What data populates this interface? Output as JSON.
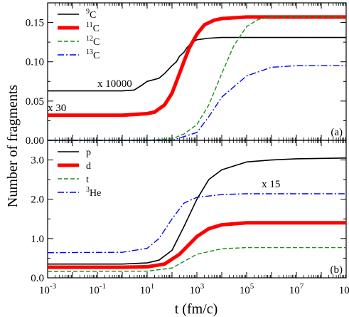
{
  "figure": {
    "ylabel": "Number of fragments",
    "xlabel": "t (fm/c)"
  },
  "chart_data": [
    {
      "type": "line",
      "panel_label": "(a)",
      "xscale": "log",
      "xlim": [
        0.001,
        1000000000
      ],
      "ylim": [
        0,
        0.175
      ],
      "yticks": [
        "0.00",
        "0.05",
        "0.10",
        "0.15"
      ],
      "ytick_values": [
        0,
        0.05,
        0.1,
        0.15
      ],
      "legend_placement": "top-left",
      "series": [
        {
          "name": "9C",
          "label_parts": [
            "9",
            "C"
          ],
          "color": "#000000",
          "style": "solid",
          "width": 1.6,
          "points": [
            [
              0.001,
              0.063
            ],
            [
              1,
              0.063
            ],
            [
              3,
              0.064
            ],
            [
              6,
              0.07
            ],
            [
              10,
              0.075
            ],
            [
              30,
              0.079
            ],
            [
              50,
              0.085
            ],
            [
              100,
              0.095
            ],
            [
              150,
              0.1
            ],
            [
              200,
              0.107
            ],
            [
              300,
              0.112
            ],
            [
              400,
              0.118
            ],
            [
              600,
              0.124
            ],
            [
              1000,
              0.128
            ],
            [
              3000,
              0.13
            ],
            [
              10000,
              0.131
            ],
            [
              1000000000,
              0.131
            ]
          ]
        },
        {
          "name": "11C",
          "label_parts": [
            "11",
            "C"
          ],
          "color": "#ff0000",
          "style": "solid",
          "width": 5,
          "points": [
            [
              0.001,
              0.032
            ],
            [
              1,
              0.032
            ],
            [
              10,
              0.034
            ],
            [
              20,
              0.036
            ],
            [
              50,
              0.045
            ],
            [
              100,
              0.06
            ],
            [
              200,
              0.085
            ],
            [
              300,
              0.1
            ],
            [
              500,
              0.118
            ],
            [
              1000,
              0.135
            ],
            [
              2000,
              0.147
            ],
            [
              5000,
              0.153
            ],
            [
              10000,
              0.155
            ],
            [
              100000,
              0.157
            ],
            [
              1000000000,
              0.157
            ]
          ]
        },
        {
          "name": "12C",
          "label_parts": [
            "12",
            "C"
          ],
          "color": "#1a8f1a",
          "style": "dashed",
          "width": 1.4,
          "points": [
            [
              0.001,
              0.0
            ],
            [
              10,
              0.0
            ],
            [
              100,
              0.002
            ],
            [
              300,
              0.008
            ],
            [
              1000,
              0.02
            ],
            [
              3000,
              0.045
            ],
            [
              10000,
              0.085
            ],
            [
              30000,
              0.12
            ],
            [
              100000,
              0.145
            ],
            [
              300000,
              0.154
            ],
            [
              1000000,
              0.157
            ],
            [
              1000000000,
              0.157
            ]
          ]
        },
        {
          "name": "13C",
          "label_parts": [
            "13",
            "C"
          ],
          "color": "#0000ff",
          "style": "dashdot",
          "width": 1.4,
          "points": [
            [
              0.001,
              0.0
            ],
            [
              100,
              0.0
            ],
            [
              1000,
              0.01
            ],
            [
              3000,
              0.03
            ],
            [
              10000,
              0.055
            ],
            [
              100000,
              0.082
            ],
            [
              1000000,
              0.093
            ],
            [
              10000000,
              0.095
            ],
            [
              1000000000,
              0.095
            ]
          ]
        }
      ],
      "annotations": [
        {
          "text": "x 10000",
          "color": "#000000",
          "x": 0.1,
          "y": 0.068
        },
        {
          "text": "x 30",
          "color": "#ff0000",
          "x": 0.001,
          "y": 0.037
        }
      ]
    },
    {
      "type": "line",
      "panel_label": "(b)",
      "xscale": "log",
      "xlim": [
        0.001,
        1000000000
      ],
      "ylim": [
        0,
        3.5
      ],
      "yticks": [
        "0.0",
        "1.0",
        "2.0",
        "3.0"
      ],
      "ytick_values": [
        0,
        1,
        2,
        3
      ],
      "xticks": [
        "10-3",
        "10-1",
        "101",
        "103",
        "105",
        "107",
        "109"
      ],
      "xtick_values": [
        -3,
        -1,
        1,
        3,
        5,
        7,
        9
      ],
      "legend_placement": "top-left",
      "series": [
        {
          "name": "p",
          "label_parts": [
            "",
            "p"
          ],
          "color": "#000000",
          "style": "solid",
          "width": 1.6,
          "points": [
            [
              0.001,
              0.35
            ],
            [
              1,
              0.35
            ],
            [
              10,
              0.38
            ],
            [
              30,
              0.45
            ],
            [
              100,
              0.7
            ],
            [
              300,
              1.3
            ],
            [
              1000,
              2.0
            ],
            [
              3000,
              2.5
            ],
            [
              10000,
              2.75
            ],
            [
              100000,
              2.95
            ],
            [
              1000000,
              3.0
            ],
            [
              10000000,
              3.03
            ],
            [
              1000000000,
              3.05
            ]
          ]
        },
        {
          "name": "d",
          "label_parts": [
            "",
            "d"
          ],
          "color": "#ff0000",
          "style": "solid",
          "width": 5,
          "points": [
            [
              0.001,
              0.27
            ],
            [
              1,
              0.27
            ],
            [
              10,
              0.28
            ],
            [
              50,
              0.35
            ],
            [
              200,
              0.6
            ],
            [
              1000,
              1.05
            ],
            [
              3000,
              1.25
            ],
            [
              10000,
              1.35
            ],
            [
              100000,
              1.4
            ],
            [
              1000000000,
              1.4
            ]
          ]
        },
        {
          "name": "t",
          "label_parts": [
            "",
            "t"
          ],
          "color": "#1a8f1a",
          "style": "dashed",
          "width": 1.4,
          "points": [
            [
              0.001,
              0.16
            ],
            [
              10,
              0.17
            ],
            [
              100,
              0.25
            ],
            [
              1000,
              0.6
            ],
            [
              10000,
              0.74
            ],
            [
              100000,
              0.77
            ],
            [
              1000000000,
              0.77
            ]
          ]
        },
        {
          "name": "3He",
          "label_parts": [
            "3",
            "He"
          ],
          "color": "#0000ff",
          "style": "dashdot",
          "width": 1.4,
          "points": [
            [
              0.001,
              0.64
            ],
            [
              1,
              0.65
            ],
            [
              10,
              0.75
            ],
            [
              30,
              1.0
            ],
            [
              100,
              1.5
            ],
            [
              300,
              1.9
            ],
            [
              1000,
              2.05
            ],
            [
              10000,
              2.12
            ],
            [
              100000,
              2.14
            ],
            [
              1000000000,
              2.14
            ]
          ]
        }
      ],
      "annotations": [
        {
          "text": "x 15",
          "color": "#0000ff",
          "x": 400000,
          "y": 2.3
        }
      ]
    }
  ]
}
